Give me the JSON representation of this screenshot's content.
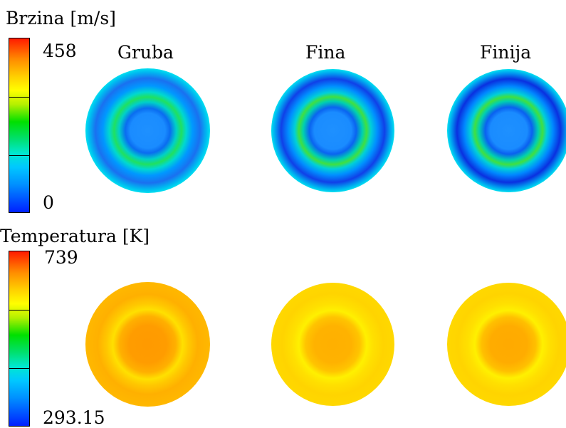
{
  "velocity": {
    "title": "Brzina [m/s]",
    "max": "458",
    "min": "0"
  },
  "temperature": {
    "title": "Temperatura [K]",
    "max": "739",
    "min": "293.15"
  },
  "columns": [
    "Gruba",
    "Fina",
    "Finija"
  ],
  "colormap": [
    "#0000ff",
    "#00c8ff",
    "#00e6b4",
    "#00dc00",
    "#b4f000",
    "#ffff00",
    "#ffb400",
    "#ff0000"
  ]
}
